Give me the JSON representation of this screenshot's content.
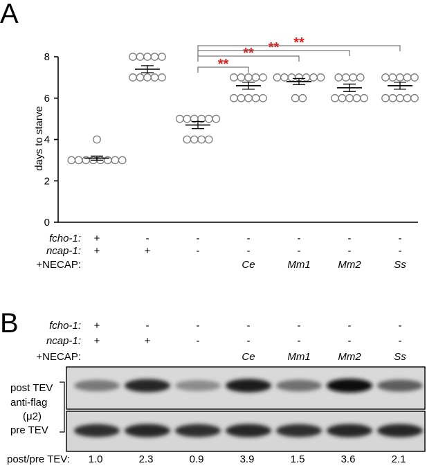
{
  "panelA": {
    "letter": "A",
    "chart_data": {
      "type": "scatter",
      "ylabel": "days to starve",
      "ylim": [
        0,
        8
      ],
      "yticks": [
        "0",
        "2",
        "4",
        "6",
        "8"
      ],
      "series": [
        {
          "points": [
            4,
            3,
            3,
            3,
            3,
            3,
            3,
            3,
            3
          ],
          "mean": 3.1,
          "sem": 0.1
        },
        {
          "points": [
            8,
            8,
            8,
            8,
            8,
            7,
            7,
            7,
            7,
            7
          ],
          "mean": 7.4,
          "sem": 0.17
        },
        {
          "points": [
            5,
            5,
            5,
            5,
            5,
            5,
            4,
            4,
            4,
            4
          ],
          "mean": 4.7,
          "sem": 0.17
        },
        {
          "points": [
            7,
            7,
            7,
            7,
            7,
            6,
            6,
            6,
            6,
            6
          ],
          "mean": 6.6,
          "sem": 0.17
        },
        {
          "points": [
            7,
            7,
            7,
            7,
            7,
            7,
            7,
            6,
            6
          ],
          "mean": 6.8,
          "sem": 0.15
        },
        {
          "points": [
            7,
            7,
            7,
            7,
            6,
            6,
            6,
            6,
            6
          ],
          "mean": 6.5,
          "sem": 0.18
        },
        {
          "points": [
            7,
            7,
            7,
            7,
            7,
            6,
            6,
            6,
            6,
            6
          ],
          "mean": 6.6,
          "sem": 0.17
        }
      ],
      "comparisons": [
        {
          "from": 2,
          "to": 3,
          "label": "**"
        },
        {
          "from": 2,
          "to": 4,
          "label": "**"
        },
        {
          "from": 2,
          "to": 5,
          "label": "**"
        },
        {
          "from": 2,
          "to": 6,
          "label": "**"
        }
      ]
    },
    "genotype": {
      "row_labels": [
        "fcho-1:",
        "ncap-1:",
        "+NECAP:"
      ],
      "fcho1": [
        "+",
        "-",
        "-",
        "-",
        "-",
        "-",
        "-"
      ],
      "ncap1": [
        "+",
        "+",
        "-",
        "-",
        "-",
        "-",
        "-"
      ],
      "necap": [
        "",
        "",
        "",
        "Ce",
        "Mm1",
        "Mm2",
        "Ss"
      ]
    }
  },
  "panelB": {
    "letter": "B",
    "genotype": {
      "row_labels": [
        "fcho-1:",
        "ncap-1:",
        "+NECAP:"
      ],
      "fcho1": [
        "+",
        "-",
        "-",
        "-",
        "-",
        "-",
        "-"
      ],
      "ncap1": [
        "+",
        "+",
        "-",
        "-",
        "-",
        "-",
        "-"
      ],
      "necap": [
        "",
        "",
        "",
        "Ce",
        "Mm1",
        "Mm2",
        "Ss"
      ]
    },
    "blot": {
      "label_post": "post TEV",
      "label_antibody": "anti-flag",
      "label_target": "(μ2)",
      "label_pre": "pre TEV",
      "post_intensity": [
        0.4,
        0.85,
        0.3,
        0.9,
        0.45,
        1.0,
        0.55
      ],
      "pre_intensity": [
        0.8,
        0.85,
        0.8,
        0.85,
        0.8,
        0.85,
        0.85
      ]
    },
    "ratio": {
      "label": "post/pre TEV:",
      "values": [
        "1.0",
        "2.3",
        "0.9",
        "3.9",
        "1.5",
        "3.6",
        "2.1"
      ]
    }
  }
}
